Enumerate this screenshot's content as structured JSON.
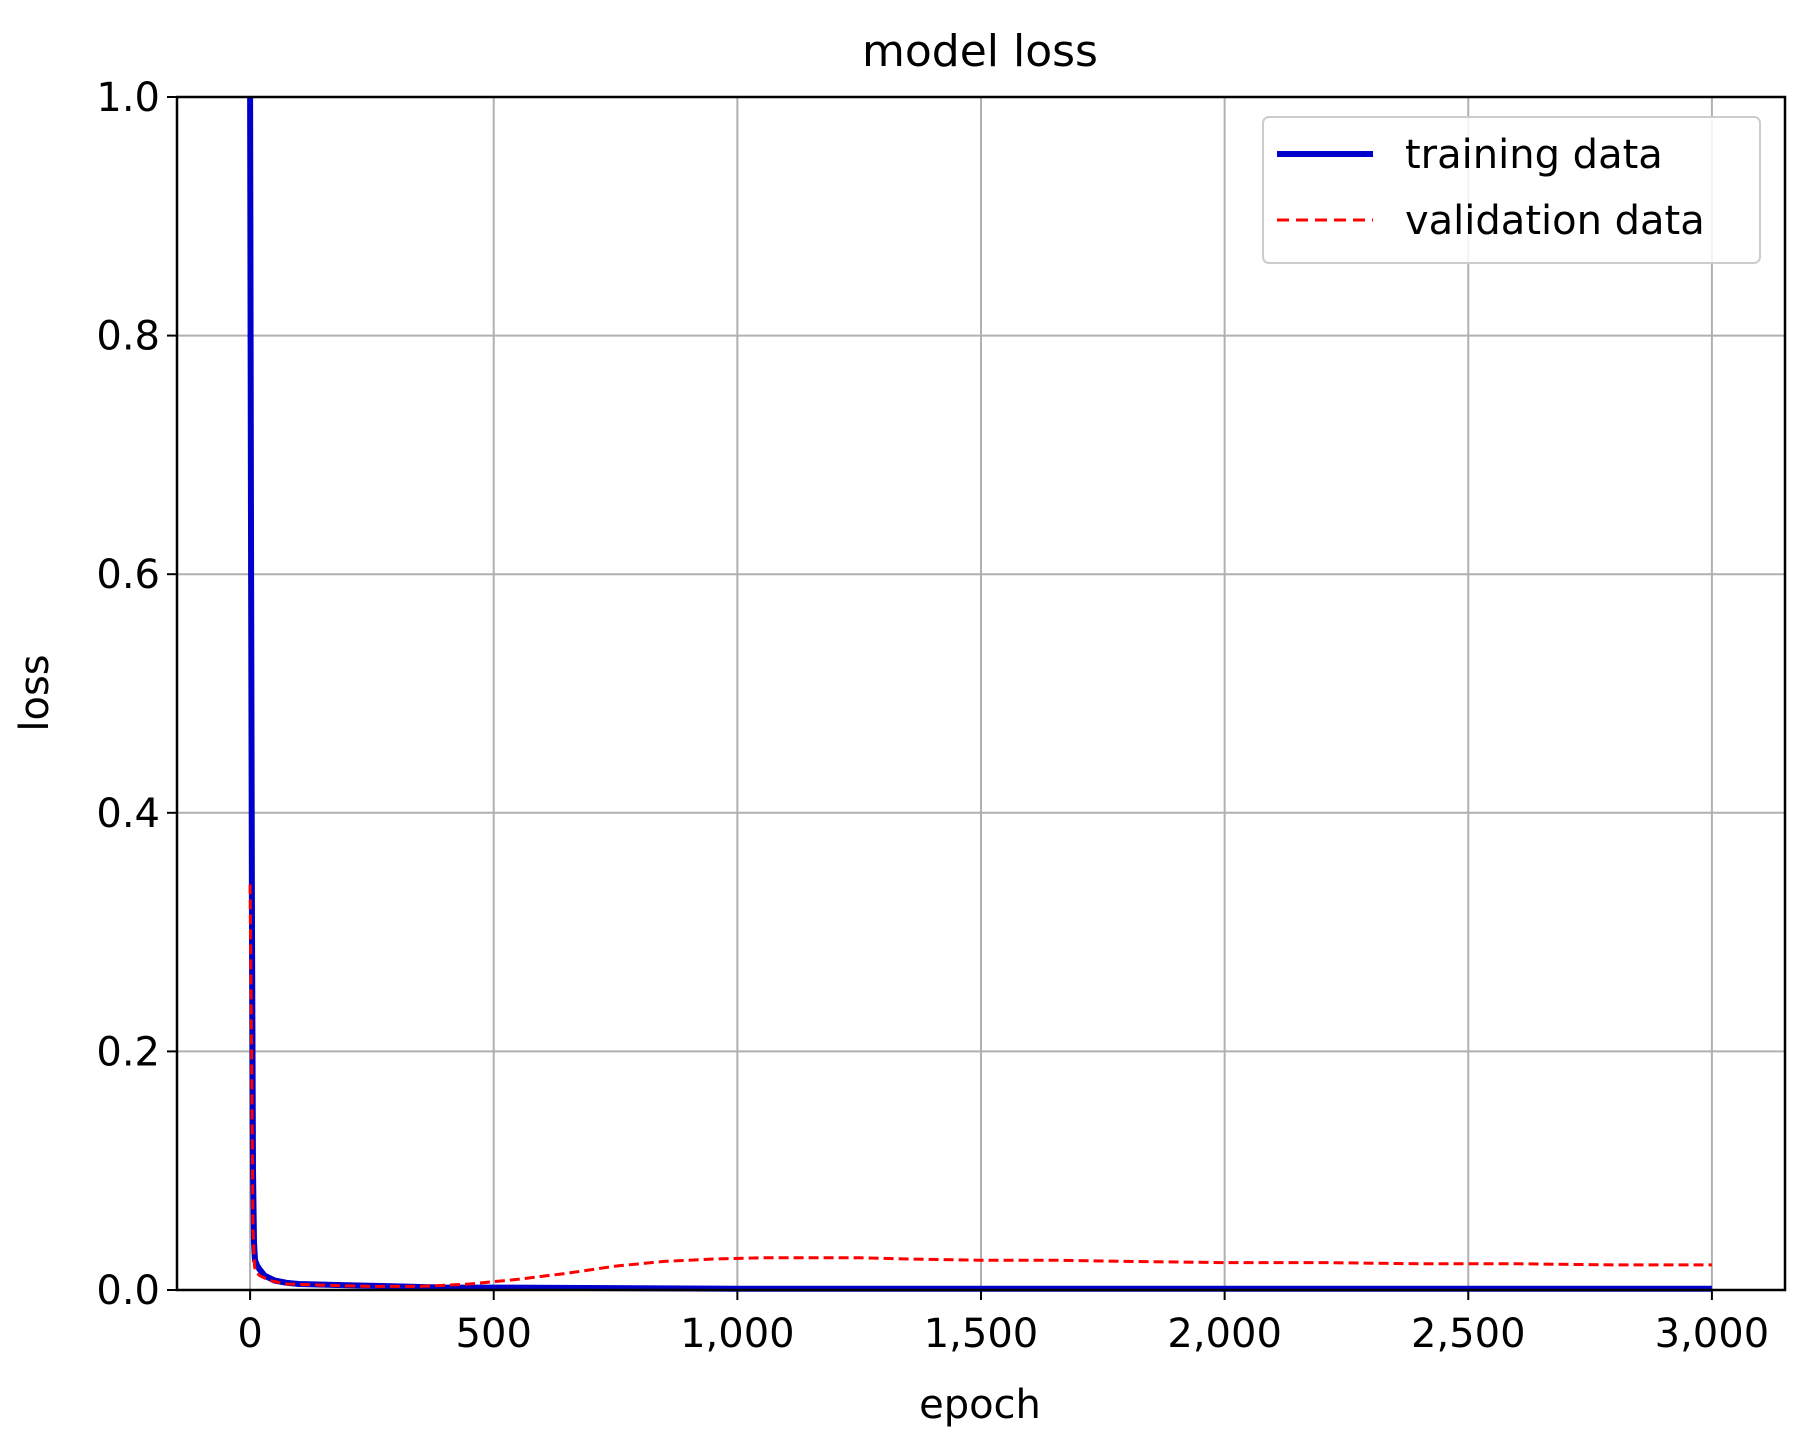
{
  "chart_data": {
    "type": "line",
    "title": "model loss",
    "xlabel": "epoch",
    "ylabel": "loss",
    "xlim": [
      -150,
      3150
    ],
    "ylim": [
      0,
      1.0
    ],
    "xticks": [
      0,
      500,
      1000,
      1500,
      2000,
      2500,
      3000
    ],
    "xtick_labels": [
      "0",
      "500",
      "1,000",
      "1,500",
      "2,000",
      "2,500",
      "3,000"
    ],
    "yticks": [
      0,
      0.2,
      0.4,
      0.6,
      0.8,
      1.0
    ],
    "ytick_labels": [
      "0.0",
      "0.2",
      "0.4",
      "0.6",
      "0.8",
      "1.0"
    ],
    "grid": true,
    "legend_position": "top-right",
    "series": [
      {
        "name": "training data",
        "color": "#0000cc",
        "style": "solid",
        "x": [
          0,
          2,
          4,
          6,
          8,
          10,
          15,
          20,
          30,
          50,
          75,
          100,
          200,
          300,
          400,
          500,
          1000,
          1500,
          2000,
          2500,
          3000
        ],
        "y": [
          1.0,
          0.6,
          0.3,
          0.1,
          0.04,
          0.025,
          0.02,
          0.017,
          0.012,
          0.008,
          0.006,
          0.005,
          0.004,
          0.003,
          0.002,
          0.002,
          0.001,
          0.001,
          0.001,
          0.001,
          0.001
        ]
      },
      {
        "name": "validation data",
        "color": "#ff0000",
        "style": "dashed",
        "x": [
          0,
          3,
          6,
          9,
          12,
          20,
          40,
          75,
          150,
          250,
          350,
          450,
          550,
          650,
          750,
          850,
          950,
          1050,
          1150,
          1250,
          1350,
          1500,
          1650,
          1800,
          2000,
          2200,
          2400,
          2600,
          2800,
          3000
        ],
        "y": [
          0.34,
          0.2,
          0.05,
          0.02,
          0.015,
          0.012,
          0.008,
          0.005,
          0.004,
          0.003,
          0.003,
          0.005,
          0.009,
          0.014,
          0.02,
          0.024,
          0.026,
          0.027,
          0.027,
          0.027,
          0.026,
          0.025,
          0.025,
          0.024,
          0.023,
          0.023,
          0.022,
          0.022,
          0.021,
          0.021
        ]
      }
    ]
  }
}
